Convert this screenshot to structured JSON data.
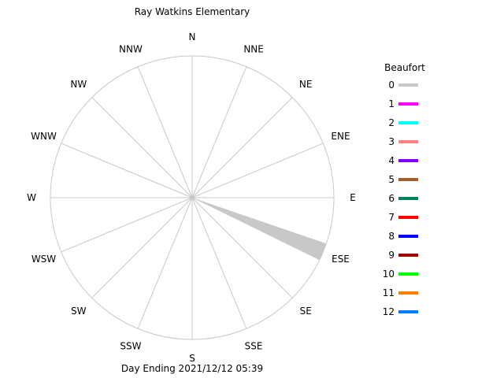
{
  "chart_data": {
    "type": "wind-rose",
    "title": "Ray Watkins Elementary",
    "footer": "Day Ending 2021/12/12 05:39",
    "directions": [
      "N",
      "NNE",
      "NE",
      "ENE",
      "E",
      "ESE",
      "SE",
      "SSE",
      "S",
      "SSW",
      "SW",
      "WSW",
      "W",
      "WNW",
      "NW",
      "NNW"
    ],
    "legend": {
      "title": "Beaufort",
      "placement": "right",
      "entries": [
        {
          "label": "0",
          "color": "#c8c8c8"
        },
        {
          "label": "1",
          "color": "#ff00ff"
        },
        {
          "label": "2",
          "color": "#00ffff"
        },
        {
          "label": "3",
          "color": "#ff8080"
        },
        {
          "label": "4",
          "color": "#8000ff"
        },
        {
          "label": "5",
          "color": "#a0602c"
        },
        {
          "label": "6",
          "color": "#008060"
        },
        {
          "label": "7",
          "color": "#ff0000"
        },
        {
          "label": "8",
          "color": "#0000ff"
        },
        {
          "label": "9",
          "color": "#a00000"
        },
        {
          "label": "10",
          "color": "#00ff00"
        },
        {
          "label": "11",
          "color": "#ff8000"
        },
        {
          "label": "12",
          "color": "#0080ff"
        }
      ]
    },
    "series": [
      {
        "name": "0",
        "direction": "ESE",
        "frequency": 1.0
      }
    ],
    "grid": true
  }
}
